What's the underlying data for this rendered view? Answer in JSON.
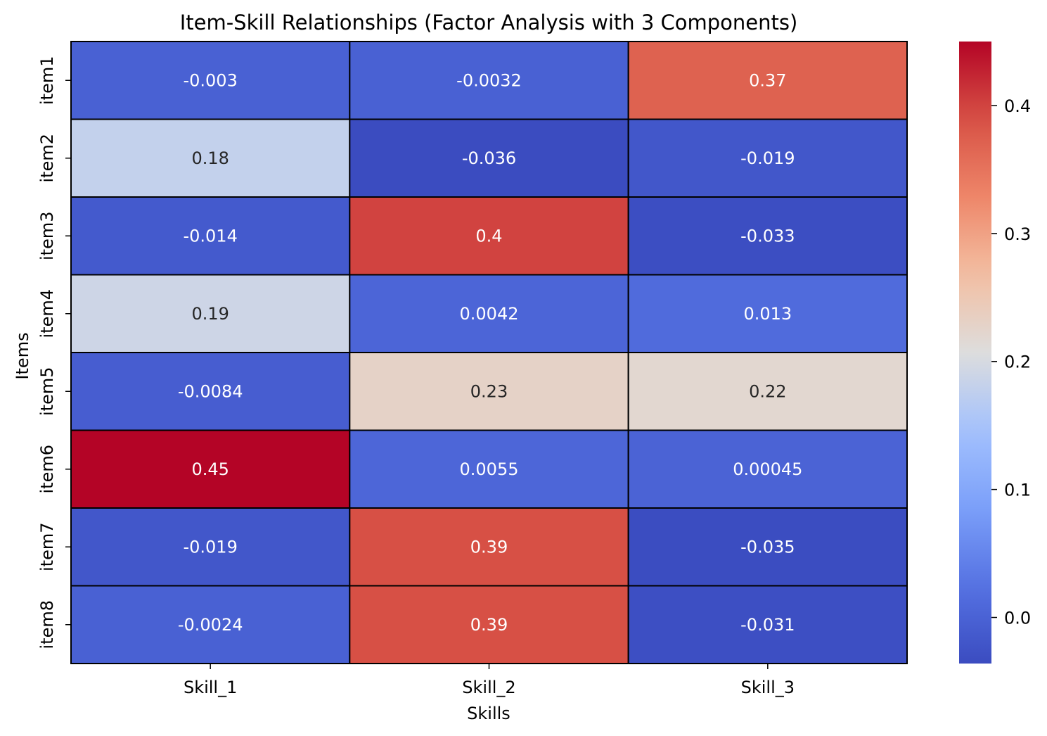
{
  "chart_data": {
    "type": "heatmap",
    "title": "Item-Skill Relationships (Factor Analysis with 3 Components)",
    "xlabel": "Skills",
    "ylabel": "Items",
    "columns": [
      "Skill_1",
      "Skill_2",
      "Skill_3"
    ],
    "rows": [
      "item1",
      "item2",
      "item3",
      "item4",
      "item5",
      "item6",
      "item7",
      "item8"
    ],
    "values": [
      [
        -0.003,
        -0.0032,
        0.37
      ],
      [
        0.18,
        -0.036,
        -0.019
      ],
      [
        -0.014,
        0.4,
        -0.033
      ],
      [
        0.19,
        0.0042,
        0.013
      ],
      [
        -0.0084,
        0.23,
        0.22
      ],
      [
        0.45,
        0.0055,
        0.00045
      ],
      [
        -0.019,
        0.39,
        -0.035
      ],
      [
        -0.0024,
        0.39,
        -0.031
      ]
    ],
    "cell_labels": [
      [
        "-0.003",
        "-0.0032",
        "0.37"
      ],
      [
        "0.18",
        "-0.036",
        "-0.019"
      ],
      [
        "-0.014",
        "0.4",
        "-0.033"
      ],
      [
        "0.19",
        "0.0042",
        "0.013"
      ],
      [
        "-0.0084",
        "0.23",
        "0.22"
      ],
      [
        "0.45",
        "0.0055",
        "0.00045"
      ],
      [
        "-0.019",
        "0.39",
        "-0.035"
      ],
      [
        "-0.0024",
        "0.39",
        "-0.031"
      ]
    ],
    "colormap": "coolwarm",
    "vmin": -0.036,
    "vmax": 0.45,
    "colorbar_ticks": [
      0.0,
      0.1,
      0.2,
      0.3,
      0.4
    ],
    "colorbar_tick_labels": [
      "0.0",
      "0.1",
      "0.2",
      "0.3",
      "0.4"
    ],
    "cell_border_color": "#000000",
    "text_color_light": "#ffffff",
    "text_color_dark": "#262626"
  }
}
